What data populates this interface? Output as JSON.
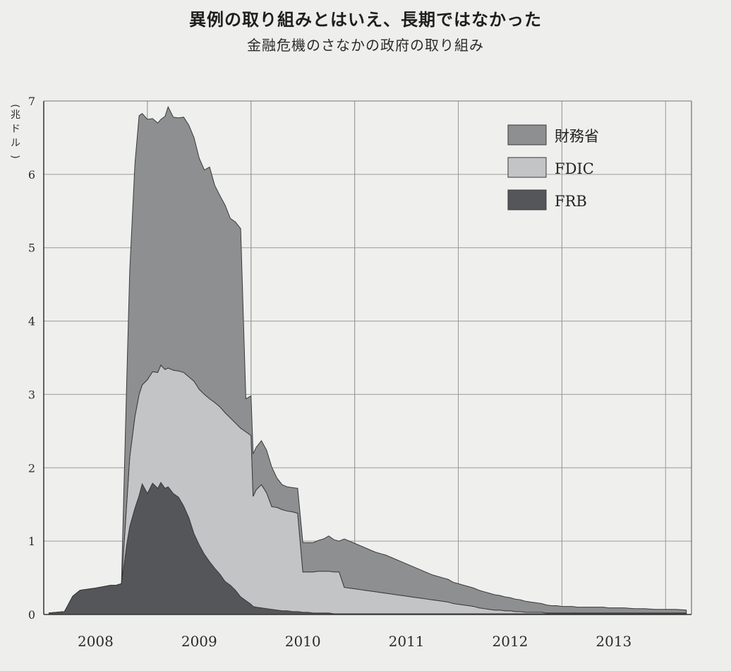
{
  "title": "異例の取り組みとはいえ、長期ではなかった",
  "subtitle": "金融危機のさなかの政府の取り組み",
  "chart_data": {
    "type": "area",
    "stacked": true,
    "title": "異例の取り組みとはいえ、長期ではなかった",
    "subtitle": "金融危機のさなかの政府の取り組み",
    "ylabel": "(兆ドル)",
    "xlabel": "",
    "ylim": [
      0,
      7
    ],
    "xlim": [
      2007.5,
      2013.75
    ],
    "yticks": [
      "0",
      "1",
      "2",
      "3",
      "4",
      "5",
      "6",
      "7"
    ],
    "xticks": [
      "2008",
      "2009",
      "2010",
      "2011",
      "2012",
      "2013"
    ],
    "grid": true,
    "legend_position": "top-right",
    "x": [
      2007.55,
      2007.7,
      2007.78,
      2007.85,
      2008.0,
      2008.15,
      2008.2,
      2008.25,
      2008.3,
      2008.33,
      2008.38,
      2008.42,
      2008.45,
      2008.5,
      2008.55,
      2008.6,
      2008.63,
      2008.67,
      2008.7,
      2008.75,
      2008.8,
      2008.85,
      2008.9,
      2008.95,
      2009.0,
      2009.05,
      2009.1,
      2009.15,
      2009.2,
      2009.25,
      2009.3,
      2009.35,
      2009.4,
      2009.45,
      2009.5,
      2009.52,
      2009.55,
      2009.6,
      2009.65,
      2009.7,
      2009.75,
      2009.8,
      2009.85,
      2009.9,
      2009.95,
      2010.0,
      2010.05,
      2010.1,
      2010.15,
      2010.2,
      2010.25,
      2010.3,
      2010.35,
      2010.4,
      2010.45,
      2010.5,
      2010.55,
      2010.6,
      2010.65,
      2010.7,
      2010.75,
      2010.8,
      2010.85,
      2010.9,
      2010.95,
      2011.0,
      2011.05,
      2011.1,
      2011.15,
      2011.2,
      2011.25,
      2011.3,
      2011.35,
      2011.4,
      2011.45,
      2011.5,
      2011.55,
      2011.6,
      2011.65,
      2011.7,
      2011.75,
      2011.8,
      2011.85,
      2011.9,
      2011.95,
      2012.0,
      2012.05,
      2012.1,
      2012.15,
      2012.2,
      2012.25,
      2012.3,
      2012.35,
      2012.4,
      2012.45,
      2012.5,
      2012.55,
      2012.6,
      2012.65,
      2012.7,
      2012.75,
      2012.8,
      2012.85,
      2012.9,
      2012.95,
      2013.0,
      2013.1,
      2013.2,
      2013.3,
      2013.4,
      2013.5,
      2013.6,
      2013.7
    ],
    "series": [
      {
        "name": "FRB",
        "color": "#555659",
        "values": [
          0.02,
          0.04,
          0.25,
          0.33,
          0.36,
          0.4,
          0.4,
          0.42,
          0.95,
          1.2,
          1.45,
          1.62,
          1.78,
          1.65,
          1.79,
          1.72,
          1.8,
          1.72,
          1.74,
          1.65,
          1.6,
          1.48,
          1.32,
          1.1,
          0.95,
          0.82,
          0.72,
          0.63,
          0.55,
          0.45,
          0.4,
          0.33,
          0.24,
          0.19,
          0.14,
          0.11,
          0.1,
          0.09,
          0.08,
          0.07,
          0.06,
          0.05,
          0.05,
          0.04,
          0.04,
          0.03,
          0.03,
          0.02,
          0.02,
          0.02,
          0.02,
          0.01,
          0.01,
          0.01,
          0.01,
          0.01,
          0.01,
          0.01,
          0.01,
          0.01,
          0.01,
          0.01,
          0.01,
          0.01,
          0.01,
          0.01,
          0.01,
          0.01,
          0.01,
          0.01,
          0.01,
          0.01,
          0.01,
          0.01,
          0.01,
          0.01,
          0.01,
          0.01,
          0.01,
          0.01,
          0.01,
          0.01,
          0.01,
          0.01,
          0.01,
          0.01,
          0.01,
          0.01,
          0.01,
          0.01,
          0.01,
          0.01,
          0.01,
          0.01,
          0.01,
          0.01,
          0.01,
          0.01,
          0.01,
          0.01,
          0.01,
          0.01,
          0.01,
          0.01,
          0.01,
          0.01,
          0.01,
          0.01,
          0.01,
          0.01,
          0.01,
          0.01,
          0.01
        ]
      },
      {
        "name": "FDIC",
        "color": "#c3c4c5",
        "values": [
          0.0,
          0.0,
          0.0,
          0.0,
          0.0,
          0.0,
          0.0,
          0.0,
          0.55,
          0.95,
          1.25,
          1.38,
          1.35,
          1.55,
          1.52,
          1.58,
          1.6,
          1.62,
          1.62,
          1.68,
          1.72,
          1.82,
          1.92,
          2.08,
          2.12,
          2.18,
          2.22,
          2.26,
          2.28,
          2.3,
          2.28,
          2.28,
          2.3,
          2.3,
          2.3,
          1.5,
          1.6,
          1.68,
          1.58,
          1.4,
          1.4,
          1.38,
          1.36,
          1.36,
          1.34,
          0.55,
          0.55,
          0.56,
          0.57,
          0.57,
          0.57,
          0.57,
          0.57,
          0.36,
          0.35,
          0.34,
          0.33,
          0.32,
          0.31,
          0.3,
          0.29,
          0.28,
          0.27,
          0.26,
          0.25,
          0.24,
          0.23,
          0.22,
          0.21,
          0.2,
          0.19,
          0.18,
          0.17,
          0.16,
          0.14,
          0.13,
          0.12,
          0.11,
          0.1,
          0.08,
          0.07,
          0.06,
          0.05,
          0.05,
          0.04,
          0.04,
          0.03,
          0.03,
          0.02,
          0.02,
          0.02,
          0.02,
          0.01,
          0.01,
          0.01,
          0.01,
          0.01,
          0.01,
          0.01,
          0.01,
          0.01,
          0.01,
          0.01,
          0.01,
          0.01,
          0.01,
          0.01,
          0.01,
          0.01,
          0.01,
          0.01,
          0.01,
          0.01
        ]
      },
      {
        "name": "財務省",
        "color": "#8e8f91",
        "values": [
          0.0,
          0.0,
          0.0,
          0.0,
          0.0,
          0.0,
          0.0,
          0.0,
          1.65,
          2.55,
          3.45,
          3.8,
          3.7,
          3.55,
          3.45,
          3.4,
          3.35,
          3.45,
          3.56,
          3.45,
          3.45,
          3.48,
          3.43,
          3.32,
          3.15,
          3.06,
          3.16,
          2.96,
          2.88,
          2.83,
          2.72,
          2.74,
          2.72,
          0.45,
          0.54,
          0.58,
          0.58,
          0.6,
          0.58,
          0.54,
          0.4,
          0.34,
          0.33,
          0.33,
          0.34,
          0.4,
          0.4,
          0.4,
          0.42,
          0.44,
          0.48,
          0.44,
          0.42,
          0.66,
          0.64,
          0.62,
          0.6,
          0.58,
          0.56,
          0.54,
          0.53,
          0.52,
          0.5,
          0.48,
          0.46,
          0.44,
          0.42,
          0.4,
          0.38,
          0.36,
          0.34,
          0.33,
          0.32,
          0.31,
          0.29,
          0.28,
          0.27,
          0.26,
          0.25,
          0.24,
          0.23,
          0.22,
          0.21,
          0.2,
          0.19,
          0.18,
          0.17,
          0.16,
          0.15,
          0.14,
          0.13,
          0.12,
          0.11,
          0.1,
          0.1,
          0.09,
          0.09,
          0.09,
          0.08,
          0.08,
          0.08,
          0.08,
          0.08,
          0.08,
          0.07,
          0.07,
          0.07,
          0.06,
          0.06,
          0.05,
          0.05,
          0.05,
          0.04
        ]
      }
    ]
  }
}
